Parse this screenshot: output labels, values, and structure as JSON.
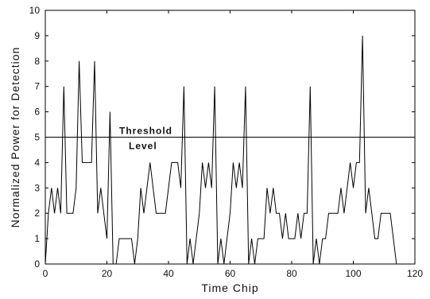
{
  "chart_data": {
    "type": "line",
    "title": "",
    "xlabel": "Time Chip",
    "ylabel": "Normalized Power for Detection",
    "xlim": [
      0,
      120
    ],
    "ylim": [
      0,
      10
    ],
    "xticks": [
      0,
      20,
      40,
      60,
      80,
      100,
      120
    ],
    "yticks": [
      0,
      1,
      2,
      3,
      4,
      5,
      6,
      7,
      8,
      9,
      10
    ],
    "grid": false,
    "threshold": {
      "value": 5,
      "label_line1": "Threshold",
      "label_line2": "Level"
    },
    "series": [
      {
        "color": "#000000",
        "x": [
          0,
          1,
          2,
          3,
          4,
          5,
          6,
          7,
          8,
          9,
          10,
          11,
          12,
          13,
          14,
          15,
          16,
          17,
          18,
          19,
          20,
          21,
          22,
          23,
          24,
          25,
          26,
          27,
          28,
          29,
          30,
          31,
          32,
          33,
          34,
          35,
          36,
          37,
          38,
          39,
          40,
          41,
          42,
          43,
          44,
          45,
          46,
          47,
          48,
          49,
          50,
          51,
          52,
          53,
          54,
          55,
          56,
          57,
          58,
          59,
          60,
          61,
          62,
          63,
          64,
          65,
          66,
          67,
          68,
          69,
          70,
          71,
          72,
          73,
          74,
          75,
          76,
          77,
          78,
          79,
          80,
          81,
          82,
          83,
          84,
          85,
          86,
          87,
          88,
          89,
          90,
          91,
          92,
          93,
          94,
          95,
          96,
          97,
          98,
          99,
          100,
          101,
          102,
          103,
          104,
          105,
          106,
          107,
          108,
          109,
          110,
          111,
          112,
          113,
          114,
          115,
          116,
          117,
          118,
          119
        ],
        "y": [
          0,
          2,
          3,
          2,
          3,
          2,
          7,
          2,
          2,
          2,
          3,
          8,
          4,
          4,
          4,
          4,
          8,
          2,
          3,
          2,
          1,
          6,
          0,
          0,
          1,
          1,
          1,
          1,
          1,
          0,
          1,
          3,
          2,
          3,
          4,
          3,
          2,
          2,
          2,
          2,
          3,
          4,
          4,
          4,
          3,
          7,
          0,
          1,
          0,
          1,
          2,
          4,
          3,
          4,
          3,
          7,
          0,
          1,
          0,
          1,
          2,
          4,
          3,
          4,
          3,
          7,
          0,
          1,
          0,
          1,
          1,
          1,
          3,
          2,
          3,
          2,
          2,
          1,
          2,
          1,
          1,
          1,
          2,
          1,
          2,
          2,
          7,
          0,
          1,
          0,
          1,
          1,
          2,
          2,
          2,
          2,
          3,
          2,
          3,
          4,
          3,
          4,
          4,
          9,
          2,
          3,
          2,
          1,
          1,
          2,
          2,
          2,
          2,
          1,
          0,
          0,
          0,
          0,
          0,
          0
        ]
      }
    ]
  }
}
